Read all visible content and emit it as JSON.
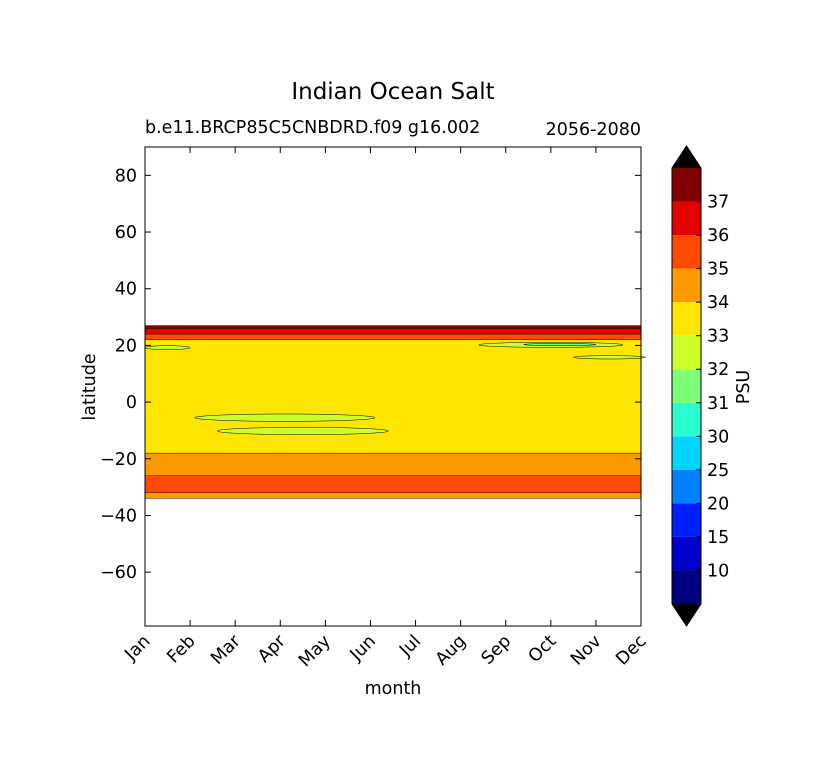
{
  "chart_data": {
    "type": "heatmap",
    "title": "Indian Ocean Salt",
    "subtitle_left": "b.e11.BRCP85C5CNBDRD.f09 g16.002",
    "subtitle_right": "2056-2080",
    "xlabel": "month",
    "ylabel": "latitude",
    "x_categories": [
      "Jan",
      "Feb",
      "Mar",
      "Apr",
      "May",
      "Jun",
      "Jul",
      "Aug",
      "Sep",
      "Oct",
      "Nov",
      "Dec"
    ],
    "ylim": [
      -79,
      90
    ],
    "y_ticks": [
      80,
      60,
      40,
      20,
      0,
      -20,
      -40,
      -60
    ],
    "colorbar": {
      "label": "PSU",
      "levels": [
        10,
        15,
        20,
        25,
        30,
        31,
        32,
        33,
        34,
        35,
        36,
        37
      ],
      "colors": [
        "#000080",
        "#0000cd",
        "#0020ff",
        "#0080ff",
        "#00d4ff",
        "#29ffce",
        "#7dff7a",
        "#ceff29",
        "#ffe600",
        "#ff9900",
        "#ff4a00",
        "#e30000",
        "#800000"
      ],
      "extend_colors": {
        "under": "#000000",
        "over": "#000000"
      }
    },
    "bands": [
      {
        "lat_min": -34,
        "lat_max": -32,
        "psu_range": "34-35",
        "color": "#ff9900"
      },
      {
        "lat_min": -32,
        "lat_max": -26,
        "psu_range": "35-36",
        "color": "#ff4a00"
      },
      {
        "lat_min": -26,
        "lat_max": -18,
        "psu_range": "34-35",
        "color": "#ff9900"
      },
      {
        "lat_min": -18,
        "lat_max": 22,
        "psu_range": "33-34",
        "color": "#ffe600"
      },
      {
        "lat_min": 22,
        "lat_max": 24,
        "psu_range": "35-36",
        "color": "#ff4a00"
      },
      {
        "lat_min": 24,
        "lat_max": 26,
        "psu_range": "36-37",
        "color": "#e30000"
      },
      {
        "lat_min": 26,
        "lat_max": 27,
        "psu_range": ">37",
        "color": "#800000"
      }
    ],
    "patches": [
      {
        "month_center": 3.1,
        "lat_center": -5.5,
        "month_halfwidth": 2.0,
        "lat_halfwidth": 1.3,
        "psu_range": "32-33",
        "color": "#ceff29"
      },
      {
        "month_center": 3.5,
        "lat_center": -10.2,
        "month_halfwidth": 1.9,
        "lat_halfwidth": 1.3,
        "psu_range": "32-33",
        "color": "#ceff29"
      },
      {
        "month_center": 0.5,
        "lat_center": 19.2,
        "month_halfwidth": 0.5,
        "lat_halfwidth": 0.7,
        "psu_range": "32-33",
        "color": "#ceff29"
      },
      {
        "month_center": 9.0,
        "lat_center": 20.2,
        "month_halfwidth": 1.6,
        "lat_halfwidth": 0.9,
        "psu_range": "32-33",
        "color": "#ceff29"
      },
      {
        "month_center": 9.2,
        "lat_center": 20.3,
        "month_halfwidth": 0.8,
        "lat_halfwidth": 0.4,
        "psu_range": "31-32",
        "color": "#7dff7a"
      },
      {
        "month_center": 10.3,
        "lat_center": 15.8,
        "month_halfwidth": 0.8,
        "lat_halfwidth": 0.6,
        "psu_range": "32-33",
        "color": "#ceff29"
      }
    ]
  }
}
